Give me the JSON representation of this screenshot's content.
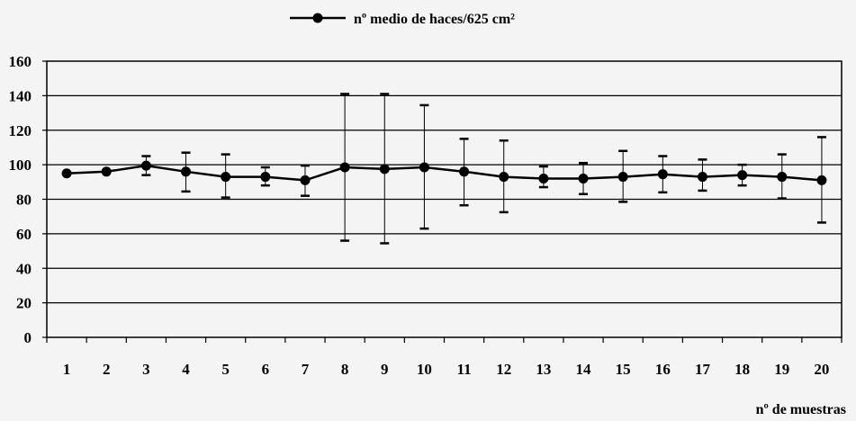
{
  "chart_data": {
    "type": "line",
    "title": "",
    "xlabel": "nº de muestras",
    "ylabel": "",
    "ylim": [
      0,
      160
    ],
    "y_ticks": [
      0,
      20,
      40,
      60,
      80,
      100,
      120,
      140,
      160
    ],
    "categories": [
      "1",
      "2",
      "3",
      "4",
      "5",
      "6",
      "7",
      "8",
      "9",
      "10",
      "11",
      "12",
      "13",
      "14",
      "15",
      "16",
      "17",
      "18",
      "19",
      "20"
    ],
    "grid": "horizontal",
    "legend_position": "top-center",
    "series": [
      {
        "name": "nº medio de haces/625 cm²",
        "color": "#000000",
        "values": [
          95,
          96,
          99.5,
          96,
          93,
          93,
          91,
          98.5,
          97.5,
          98.5,
          96,
          93,
          92,
          92,
          93,
          94.5,
          93,
          94,
          93,
          91
        ],
        "err_high": [
          95,
          96,
          105,
          107,
          106,
          98.5,
          99.5,
          141,
          141,
          134.5,
          115,
          114,
          99,
          101,
          108,
          105,
          103,
          100,
          106,
          116
        ],
        "err_low": [
          95,
          96,
          94,
          84.5,
          81,
          88,
          82,
          56,
          54.5,
          63,
          76.5,
          72.5,
          87,
          83,
          78.5,
          84,
          85,
          88,
          80.5,
          66.5
        ]
      }
    ]
  }
}
